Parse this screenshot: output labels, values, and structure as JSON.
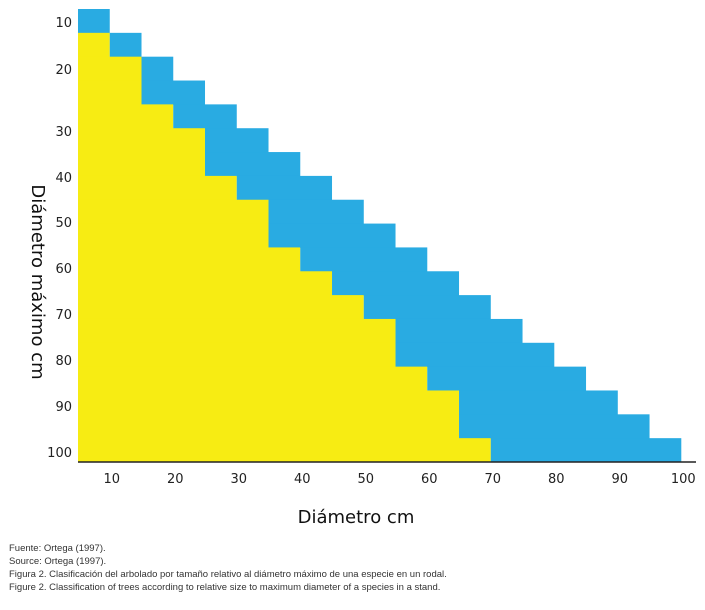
{
  "chart_data": {
    "type": "heatmap",
    "xlabel": "Diámetro cm",
    "ylabel": "Diámetro máximo cm",
    "x_ticks": [
      10,
      20,
      30,
      40,
      50,
      60,
      70,
      80,
      90,
      100
    ],
    "y_ticks": [
      10,
      20,
      30,
      40,
      50,
      60,
      70,
      80,
      90,
      100
    ],
    "colors": {
      "upper_band": "#29abe2",
      "lower_band": "#f7ec13"
    },
    "rows": [
      {
        "max_diameter": 10,
        "yellow_to": 0,
        "blue_to": 10
      },
      {
        "max_diameter": 15,
        "yellow_to": 10,
        "blue_to": 15
      },
      {
        "max_diameter": 20,
        "yellow_to": 15,
        "blue_to": 20
      },
      {
        "max_diameter": 25,
        "yellow_to": 15,
        "blue_to": 25
      },
      {
        "max_diameter": 30,
        "yellow_to": 20,
        "blue_to": 30
      },
      {
        "max_diameter": 35,
        "yellow_to": 25,
        "blue_to": 35
      },
      {
        "max_diameter": 40,
        "yellow_to": 25,
        "blue_to": 40
      },
      {
        "max_diameter": 45,
        "yellow_to": 30,
        "blue_to": 45
      },
      {
        "max_diameter": 50,
        "yellow_to": 35,
        "blue_to": 50
      },
      {
        "max_diameter": 55,
        "yellow_to": 35,
        "blue_to": 55
      },
      {
        "max_diameter": 60,
        "yellow_to": 40,
        "blue_to": 60
      },
      {
        "max_diameter": 65,
        "yellow_to": 45,
        "blue_to": 65
      },
      {
        "max_diameter": 70,
        "yellow_to": 50,
        "blue_to": 70
      },
      {
        "max_diameter": 75,
        "yellow_to": 55,
        "blue_to": 75
      },
      {
        "max_diameter": 80,
        "yellow_to": 55,
        "blue_to": 80
      },
      {
        "max_diameter": 85,
        "yellow_to": 60,
        "blue_to": 85
      },
      {
        "max_diameter": 90,
        "yellow_to": 65,
        "blue_to": 90
      },
      {
        "max_diameter": 95,
        "yellow_to": 65,
        "blue_to": 95
      },
      {
        "max_diameter": 100,
        "yellow_to": 70,
        "blue_to": 100
      }
    ]
  },
  "notes": {
    "source_es": "Fuente: Ortega (1997).",
    "source_en": "Source: Ortega (1997).",
    "caption_es": "Figura 2. Clasificación del arbolado por tamaño relativo al diámetro máximo de una especie en un rodal.",
    "caption_en": "Figure 2. Classification of trees according to relative size to maximum diameter of a species in a stand."
  }
}
